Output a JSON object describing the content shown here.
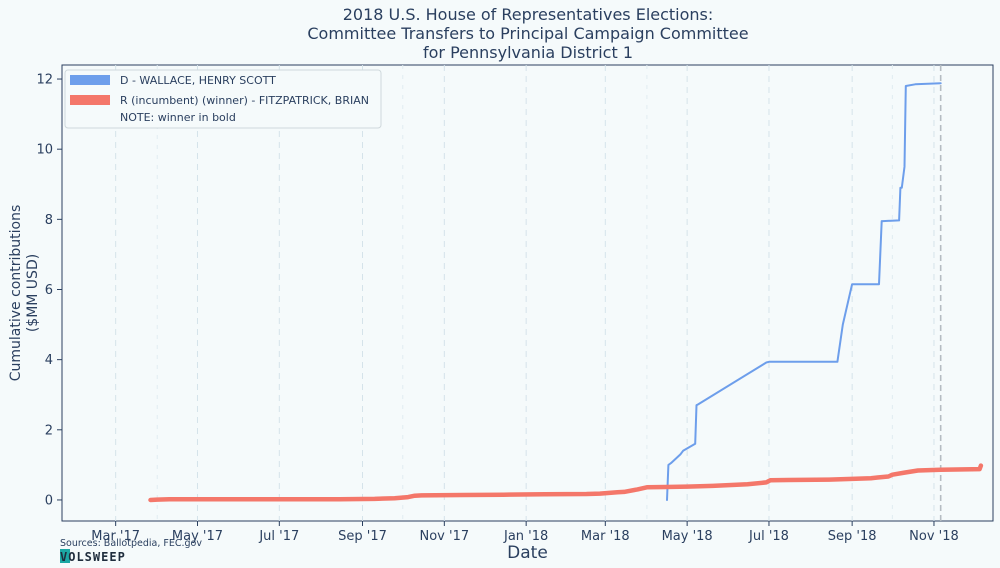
{
  "chart_data": {
    "type": "line",
    "title_lines": [
      "2018 U.S. House of Representatives Elections:",
      "Committee Transfers to Principal Campaign Committee",
      "for Pennsylvania District 1"
    ],
    "xlabel": "Date",
    "ylabel_lines": [
      "Cumulative contributions",
      "($MM USD)"
    ],
    "xlim": [
      "2017-01-20",
      "2018-12-15"
    ],
    "ylim": [
      -0.6,
      12.4
    ],
    "x_ticks": [
      {
        "date": "2017-03-01",
        "label": "Mar '17"
      },
      {
        "date": "2017-05-01",
        "label": "May '17"
      },
      {
        "date": "2017-07-01",
        "label": "Jul '17"
      },
      {
        "date": "2017-09-01",
        "label": "Sep '17"
      },
      {
        "date": "2017-11-01",
        "label": "Nov '17"
      },
      {
        "date": "2018-01-01",
        "label": "Jan '18"
      },
      {
        "date": "2018-03-01",
        "label": "Mar '18"
      },
      {
        "date": "2018-05-01",
        "label": "May '18"
      },
      {
        "date": "2018-07-01",
        "label": "Jul '18"
      },
      {
        "date": "2018-09-01",
        "label": "Sep '18"
      },
      {
        "date": "2018-11-01",
        "label": "Nov '18"
      }
    ],
    "y_ticks": [
      0,
      2,
      4,
      6,
      8,
      10,
      12
    ],
    "minor_gridline_dates": [
      "2017-04-01",
      "2017-10-01",
      "2018-04-01",
      "2018-10-01"
    ],
    "election_day": "2018-11-06",
    "grid": true,
    "legend_position": "top-left",
    "series": [
      {
        "name": "D - WALLACE, HENRY SCOTT",
        "color": "#6d9eeb",
        "x": [
          "2018-04-16",
          "2018-04-17",
          "2018-04-19",
          "2018-04-26",
          "2018-04-28",
          "2018-05-07",
          "2018-05-08",
          "2018-05-09",
          "2018-06-29",
          "2018-07-01",
          "2018-08-21",
          "2018-08-25",
          "2018-09-01",
          "2018-09-11",
          "2018-09-13",
          "2018-09-21",
          "2018-09-23",
          "2018-09-24",
          "2018-10-06",
          "2018-10-07",
          "2018-10-08",
          "2018-10-10",
          "2018-10-11",
          "2018-10-18",
          "2018-11-06"
        ],
        "values": [
          0.0,
          1.0,
          1.05,
          1.3,
          1.4,
          1.6,
          2.7,
          2.72,
          3.92,
          3.94,
          3.94,
          5.0,
          6.15,
          6.15,
          6.15,
          6.15,
          7.95,
          7.95,
          7.97,
          8.9,
          8.9,
          9.5,
          11.8,
          11.85,
          11.88
        ]
      },
      {
        "name": "R (incumbent) (winner) - FITZPATRICK, BRIAN",
        "color": "#f4776a",
        "x": [
          "2017-03-27",
          "2017-04-01",
          "2017-04-10",
          "2017-04-20",
          "2017-05-15",
          "2017-06-15",
          "2017-07-15",
          "2017-08-15",
          "2017-09-10",
          "2017-09-25",
          "2017-10-05",
          "2017-10-10",
          "2017-10-15",
          "2017-11-15",
          "2017-12-15",
          "2018-01-15",
          "2018-02-15",
          "2018-02-25",
          "2018-03-10",
          "2018-03-15",
          "2018-03-25",
          "2018-04-01",
          "2018-04-15",
          "2018-05-01",
          "2018-05-20",
          "2018-06-15",
          "2018-06-29",
          "2018-07-02",
          "2018-07-15",
          "2018-08-15",
          "2018-09-01",
          "2018-09-15",
          "2018-09-20",
          "2018-09-28",
          "2018-10-01",
          "2018-10-10",
          "2018-10-20",
          "2018-11-06",
          "2018-12-05",
          "2018-12-06"
        ],
        "values": [
          0.0,
          0.01,
          0.02,
          0.02,
          0.02,
          0.02,
          0.02,
          0.02,
          0.03,
          0.05,
          0.08,
          0.12,
          0.13,
          0.14,
          0.15,
          0.16,
          0.17,
          0.18,
          0.22,
          0.23,
          0.3,
          0.36,
          0.37,
          0.38,
          0.4,
          0.45,
          0.5,
          0.56,
          0.57,
          0.58,
          0.6,
          0.62,
          0.64,
          0.67,
          0.72,
          0.78,
          0.84,
          0.86,
          0.88,
          0.98
        ]
      }
    ],
    "legend_note": "NOTE: winner in bold",
    "source": "Sources: Ballotpedia, FEC.gov",
    "logo_text": "VOLSWEEP"
  }
}
